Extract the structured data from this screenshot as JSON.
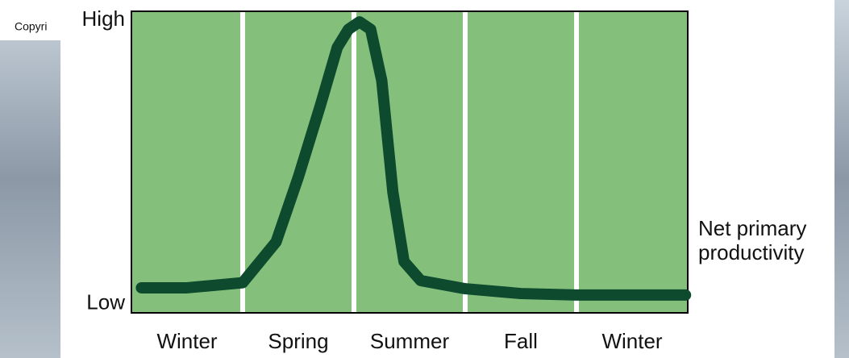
{
  "copyright_fragment": "Copyri",
  "chart_data": {
    "type": "line",
    "xlim": [
      0,
      5
    ],
    "xticks": [
      {
        "value": 0.5,
        "label": "Winter"
      },
      {
        "value": 1.5,
        "label": "Spring"
      },
      {
        "value": 2.5,
        "label": "Summer"
      },
      {
        "value": 3.5,
        "label": "Fall"
      },
      {
        "value": 4.5,
        "label": "Winter"
      }
    ],
    "ylim": [
      0,
      100
    ],
    "yticks": [
      {
        "value": 3,
        "label": "Low"
      },
      {
        "value": 97,
        "label": "High"
      }
    ],
    "x": [
      0.09,
      0.5,
      1.0,
      1.3,
      1.5,
      1.7,
      1.85,
      1.95,
      2.05,
      2.15,
      2.25,
      2.35,
      2.45,
      2.6,
      3.0,
      3.5,
      4.0,
      4.98
    ],
    "series": [
      {
        "name": "Net primary productivity",
        "color": "#0d4a2e",
        "values": [
          8.3,
          8.3,
          10,
          23.5,
          45,
          69,
          88,
          94,
          96.5,
          94,
          77,
          40,
          17,
          10.7,
          8,
          6.4,
          5.9,
          5.9
        ]
      }
    ],
    "background_color": "#84c07c"
  }
}
